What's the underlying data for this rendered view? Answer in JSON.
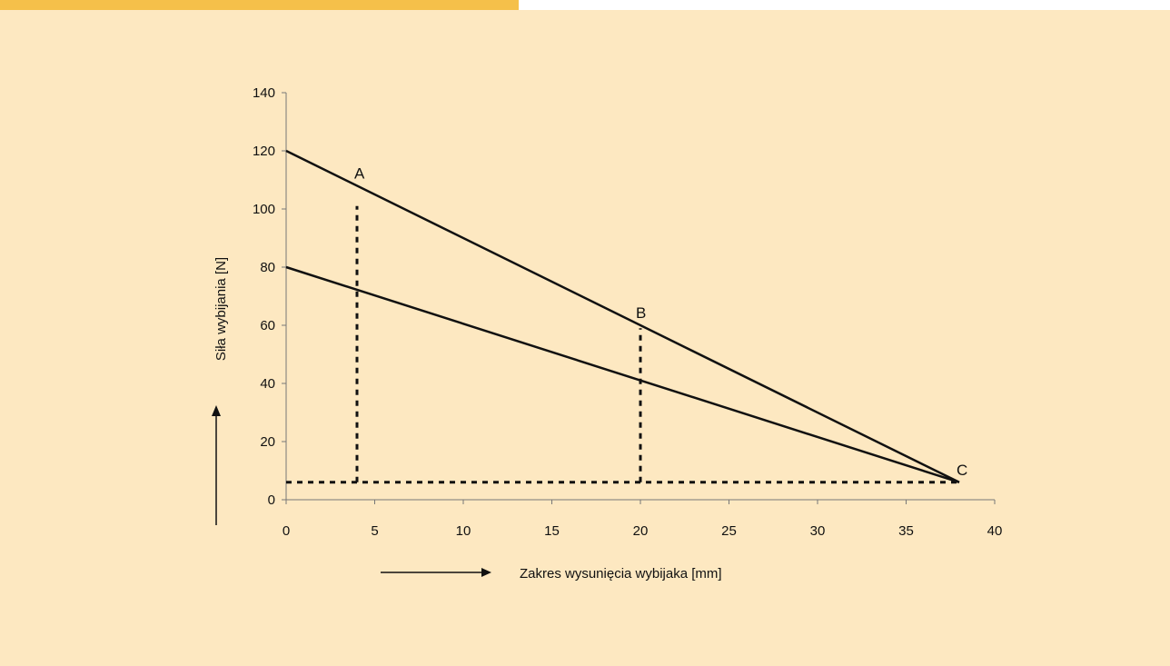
{
  "theme": {
    "panel_color": "#fde8c1",
    "accent_color": "#f5c04a",
    "ink_color": "#111111"
  },
  "chart_data": {
    "type": "line",
    "title": "",
    "xlabel": "Zakres wysunięcia wybijaka [mm]",
    "ylabel": "Siła wybijania [N]",
    "xlim": [
      0,
      40
    ],
    "ylim": [
      0,
      140
    ],
    "x_ticks": [
      0,
      5,
      10,
      15,
      20,
      25,
      30,
      35,
      40
    ],
    "y_ticks": [
      0,
      20,
      40,
      60,
      80,
      100,
      120,
      140
    ],
    "grid": false,
    "series": [
      {
        "x": [
          0,
          38
        ],
        "y": [
          120,
          6
        ],
        "style": "solid"
      },
      {
        "x": [
          0,
          38
        ],
        "y": [
          80,
          6
        ],
        "style": "solid"
      }
    ],
    "reference_lines": [
      {
        "x": [
          4,
          4
        ],
        "y": [
          6,
          101
        ],
        "style": "dotted"
      },
      {
        "x": [
          20,
          20
        ],
        "y": [
          6,
          59
        ],
        "style": "dotted"
      },
      {
        "x": [
          0,
          38
        ],
        "y": [
          6,
          6
        ],
        "style": "dotted"
      }
    ],
    "annotations": [
      {
        "text": "A",
        "x": 4,
        "y": 108
      },
      {
        "text": "B",
        "x": 20,
        "y": 60
      },
      {
        "text": "C",
        "x": 38,
        "y": 6
      }
    ]
  }
}
